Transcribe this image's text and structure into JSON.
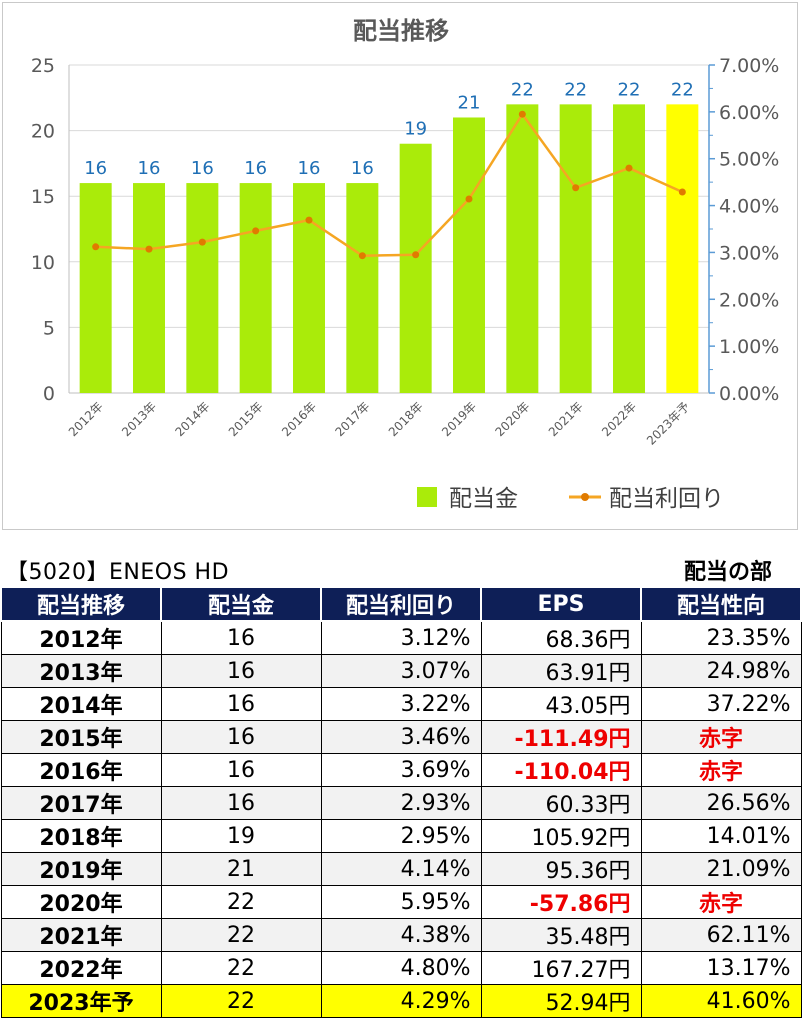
{
  "chart_data": {
    "type": "bar",
    "title": "配当推移",
    "categories": [
      "2012年",
      "2013年",
      "2014年",
      "2015年",
      "2016年",
      "2017年",
      "2018年",
      "2019年",
      "2020年",
      "2021年",
      "2022年",
      "2023年予"
    ],
    "series": [
      {
        "name": "配当金",
        "kind": "bar",
        "axis": "left",
        "color": "#aaeb0a",
        "highlight_color": "#ffff00",
        "values": [
          16,
          16,
          16,
          16,
          16,
          16,
          19,
          21,
          22,
          22,
          22,
          22
        ]
      },
      {
        "name": "配当利回り",
        "kind": "line",
        "axis": "right",
        "color": "#f5a623",
        "values": [
          3.12,
          3.07,
          3.22,
          3.46,
          3.69,
          2.93,
          2.95,
          4.14,
          5.95,
          4.38,
          4.8,
          4.29
        ]
      }
    ],
    "y_left": {
      "min": 0,
      "max": 25,
      "ticks": [
        "0",
        "5",
        "10",
        "15",
        "20",
        "25"
      ]
    },
    "y_right": {
      "min": 0,
      "max": 7,
      "ticks": [
        "0.00%",
        "1.00%",
        "2.00%",
        "3.00%",
        "4.00%",
        "5.00%",
        "6.00%",
        "7.00%"
      ]
    },
    "grid": true,
    "legend_position": "bottom-right"
  },
  "header": {
    "ticker": "【5020】ENEOS HD",
    "section": "配当の部"
  },
  "table": {
    "columns": [
      "配当推移",
      "配当金",
      "配当利回り",
      "EPS",
      "配当性向"
    ],
    "rows": [
      {
        "year": "2012年",
        "dividend": "16",
        "yield": "3.12%",
        "eps": "68.36円",
        "payout": "23.35%",
        "eps_negative": false,
        "payout_red": false
      },
      {
        "year": "2013年",
        "dividend": "16",
        "yield": "3.07%",
        "eps": "63.91円",
        "payout": "24.98%",
        "eps_negative": false,
        "payout_red": false
      },
      {
        "year": "2014年",
        "dividend": "16",
        "yield": "3.22%",
        "eps": "43.05円",
        "payout": "37.22%",
        "eps_negative": false,
        "payout_red": false
      },
      {
        "year": "2015年",
        "dividend": "16",
        "yield": "3.46%",
        "eps": "-111.49円",
        "payout": "赤字",
        "eps_negative": true,
        "payout_red": true
      },
      {
        "year": "2016年",
        "dividend": "16",
        "yield": "3.69%",
        "eps": "-110.04円",
        "payout": "赤字",
        "eps_negative": true,
        "payout_red": true
      },
      {
        "year": "2017年",
        "dividend": "16",
        "yield": "2.93%",
        "eps": "60.33円",
        "payout": "26.56%",
        "eps_negative": false,
        "payout_red": false
      },
      {
        "year": "2018年",
        "dividend": "19",
        "yield": "2.95%",
        "eps": "105.92円",
        "payout": "14.01%",
        "eps_negative": false,
        "payout_red": false
      },
      {
        "year": "2019年",
        "dividend": "21",
        "yield": "4.14%",
        "eps": "95.36円",
        "payout": "21.09%",
        "eps_negative": false,
        "payout_red": false
      },
      {
        "year": "2020年",
        "dividend": "22",
        "yield": "5.95%",
        "eps": "-57.86円",
        "payout": "赤字",
        "eps_negative": true,
        "payout_red": true
      },
      {
        "year": "2021年",
        "dividend": "22",
        "yield": "4.38%",
        "eps": "35.48円",
        "payout": "62.11%",
        "eps_negative": false,
        "payout_red": false
      },
      {
        "year": "2022年",
        "dividend": "22",
        "yield": "4.80%",
        "eps": "167.27円",
        "payout": "13.17%",
        "eps_negative": false,
        "payout_red": false
      },
      {
        "year": "2023年予",
        "dividend": "22",
        "yield": "4.29%",
        "eps": "52.94円",
        "payout": "41.60%",
        "eps_negative": false,
        "payout_red": false,
        "forecast": true
      }
    ]
  },
  "colors": {
    "header_bg": "#0e1f57",
    "alt_row": "#f2f2f2",
    "forecast_row": "#ffff00",
    "negative": "#ee0000",
    "value_label": "#1f6fb5",
    "right_axis": "#5b9bd5"
  }
}
